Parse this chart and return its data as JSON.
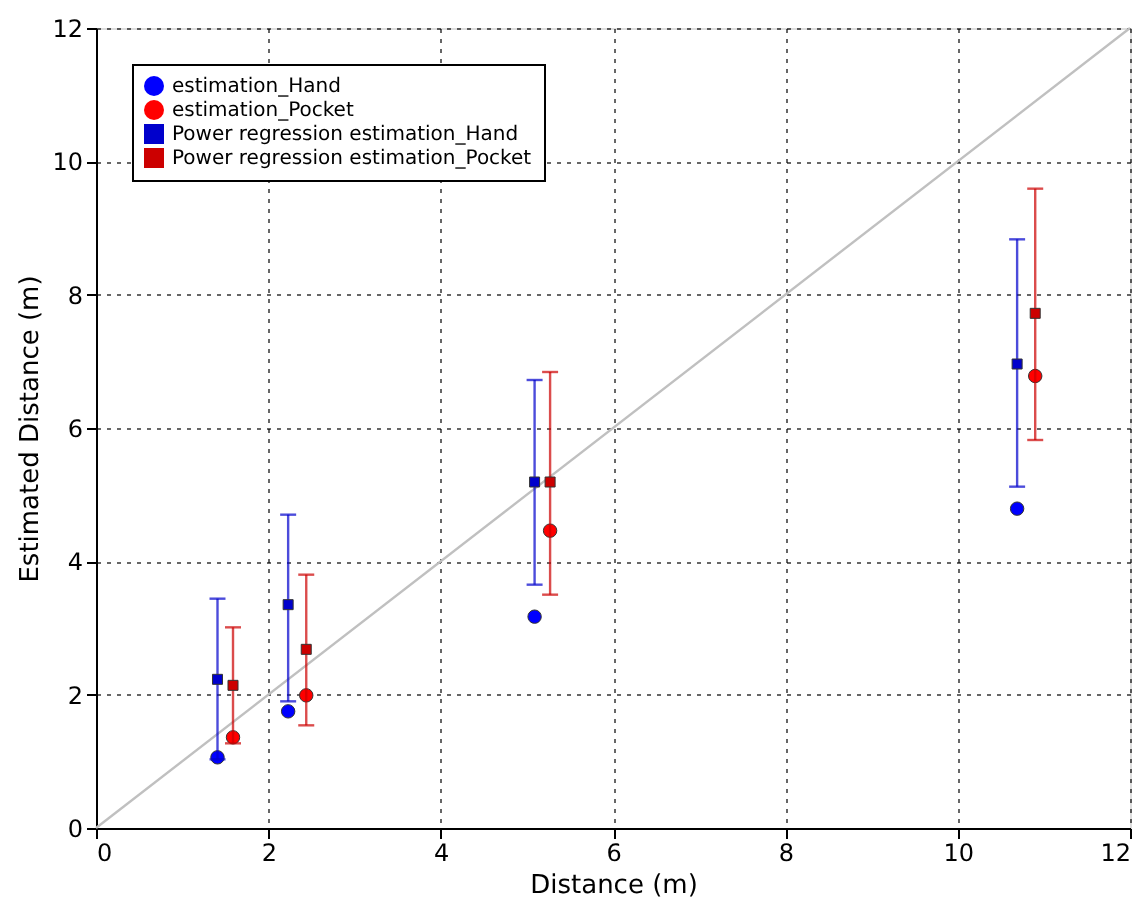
{
  "chart_data": {
    "type": "scatter",
    "xlabel": "Distance (m)",
    "ylabel": "Estimated Distance (m)",
    "xlim": [
      0,
      12
    ],
    "ylim": [
      0,
      12
    ],
    "xticks": [
      0,
      2,
      4,
      6,
      8,
      10,
      12
    ],
    "yticks": [
      0,
      2,
      4,
      6,
      8,
      10,
      12
    ],
    "grid": true,
    "legend": "top left",
    "series": [
      {
        "type": "line",
        "color": "#c0c0c0",
        "x": [
          0,
          12
        ],
        "values": [
          0,
          12
        ],
        "marker": "none",
        "line_style": "solid"
      },
      {
        "name": "estimation_Hand",
        "color": "#0000ff",
        "marker": "circle",
        "x": [
          1.41,
          2.23,
          5.09,
          10.69
        ],
        "values": [
          1.06,
          1.75,
          3.17,
          4.79
        ]
      },
      {
        "name": "estimation_Pocket",
        "color": "#ff0000",
        "marker": "circle",
        "x": [
          1.59,
          2.44,
          5.27,
          10.9
        ],
        "values": [
          1.36,
          1.99,
          4.46,
          6.78
        ]
      },
      {
        "name": "Power regression estimation_Hand",
        "color": "#0000cc",
        "marker": "square",
        "x": [
          1.41,
          2.23,
          5.09,
          10.69
        ],
        "values": [
          2.23,
          3.35,
          5.19,
          6.96
        ],
        "errors": [
          [
            1.03,
            3.44
          ],
          [
            1.9,
            4.7
          ],
          [
            3.65,
            6.72
          ],
          [
            5.12,
            8.83
          ]
        ]
      },
      {
        "name": "Power regression estimation_Pocket",
        "color": "#cc0000",
        "marker": "square",
        "x": [
          1.59,
          2.44,
          5.27,
          10.9
        ],
        "values": [
          2.14,
          2.68,
          5.19,
          7.72
        ],
        "errors": [
          [
            1.27,
            3.01
          ],
          [
            1.54,
            3.8
          ],
          [
            3.5,
            6.84
          ],
          [
            5.82,
            9.59
          ]
        ]
      }
    ]
  }
}
